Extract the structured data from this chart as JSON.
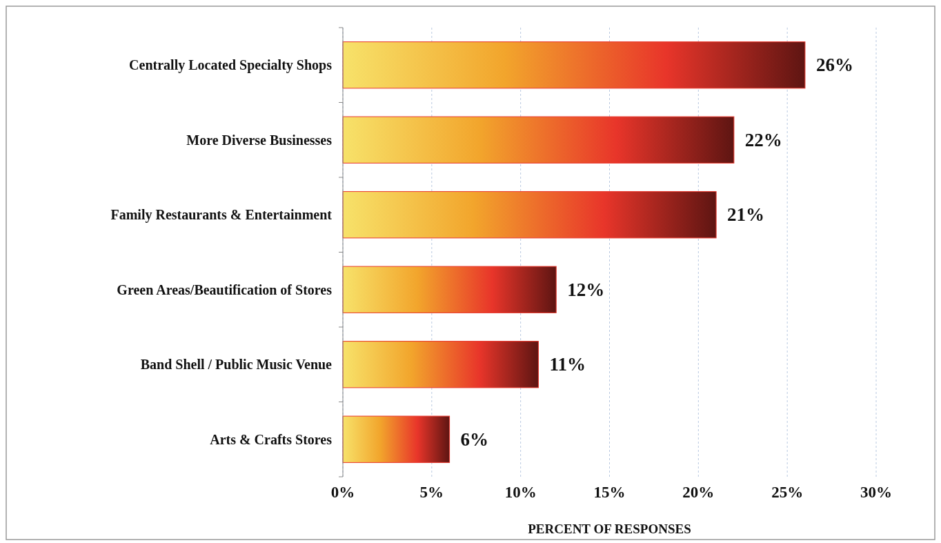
{
  "chart_data": {
    "type": "bar",
    "orientation": "horizontal",
    "xlabel": "PERCENT OF RESPONSES",
    "categories": [
      "Centrally Located Specialty Shops",
      "More Diverse Businesses",
      "Family Restaurants & Entertainment",
      "Green Areas/Beautification of Stores",
      "Band Shell / Public Music Venue",
      "Arts & Crafts Stores"
    ],
    "values": [
      26,
      22,
      21,
      12,
      11,
      6
    ],
    "color": "#e8352a",
    "value_labels": [
      "26%",
      "22%",
      "21%",
      "12%",
      "11%",
      "6%"
    ],
    "xlim": [
      0,
      30
    ],
    "xticks": [
      {
        "value": 0,
        "label": "0%"
      },
      {
        "value": 5,
        "label": "5%"
      },
      {
        "value": 10,
        "label": "10%"
      },
      {
        "value": 15,
        "label": "15%"
      },
      {
        "value": 20,
        "label": "20%"
      },
      {
        "value": 25,
        "label": "25%"
      },
      {
        "value": 30,
        "label": "30%"
      }
    ],
    "grid": "x"
  }
}
